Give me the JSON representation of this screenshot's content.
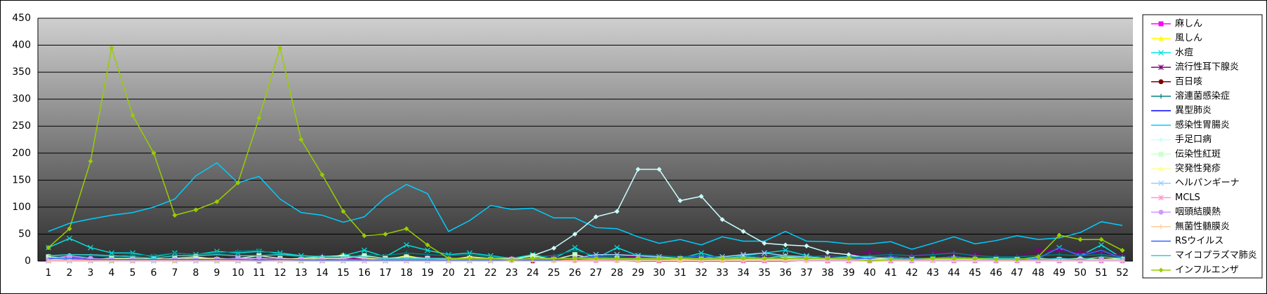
{
  "chart_data": {
    "type": "line",
    "categories": [
      "1",
      "2",
      "3",
      "4",
      "5",
      "6",
      "7",
      "8",
      "9",
      "10",
      "11",
      "12",
      "13",
      "14",
      "15",
      "16",
      "17",
      "18",
      "19",
      "20",
      "21",
      "22",
      "23",
      "24",
      "25",
      "26",
      "27",
      "28",
      "29",
      "30",
      "31",
      "32",
      "33",
      "34",
      "35",
      "36",
      "37",
      "38",
      "39",
      "40",
      "41",
      "42",
      "43",
      "44",
      "45",
      "46",
      "47",
      "48",
      "49",
      "50",
      "51",
      "52"
    ],
    "ylim": [
      0,
      450
    ],
    "yticks": [
      0,
      50,
      100,
      150,
      200,
      250,
      300,
      350,
      400,
      450
    ],
    "grid": true,
    "legend": "right",
    "series": [
      {
        "name": "麻しん",
        "color": "#ff00ff",
        "marker": "square",
        "values": [
          5,
          8,
          3,
          5,
          3,
          2,
          3,
          5,
          3,
          3,
          5,
          3,
          3,
          2,
          5,
          3,
          3,
          5,
          3,
          2,
          3,
          2,
          3,
          2,
          2,
          3,
          2,
          2,
          2,
          1,
          2,
          2,
          2,
          1,
          1,
          2,
          2,
          1,
          1,
          1,
          1,
          1,
          2,
          1,
          1,
          1,
          1,
          1,
          1,
          1,
          1,
          1
        ]
      },
      {
        "name": "風しん",
        "color": "#ffff00",
        "marker": "triangle",
        "values": [
          2,
          3,
          2,
          1,
          1,
          2,
          1,
          2,
          1,
          2,
          1,
          2,
          1,
          3,
          12,
          5,
          2,
          10,
          3,
          2,
          3,
          5,
          3,
          8,
          2,
          2,
          3,
          2,
          2,
          2,
          2,
          3,
          2,
          2,
          2,
          8,
          2,
          2,
          2,
          2,
          2,
          2,
          2,
          2,
          2,
          2,
          2,
          2,
          2,
          2,
          2,
          2
        ]
      },
      {
        "name": "水痘",
        "color": "#00e0e0",
        "marker": "x",
        "values": [
          25,
          42,
          25,
          15,
          15,
          8,
          15,
          12,
          18,
          15,
          18,
          15,
          10,
          8,
          10,
          20,
          8,
          30,
          20,
          12,
          15,
          10,
          5,
          12,
          5,
          25,
          5,
          25,
          10,
          5,
          5,
          15,
          5,
          10,
          15,
          20,
          10,
          5,
          5,
          5,
          8,
          5,
          5,
          5,
          5,
          5,
          3,
          5,
          25,
          10,
          30,
          5
        ]
      },
      {
        "name": "流行性耳下腺炎",
        "color": "#800080",
        "marker": "star",
        "values": [
          5,
          3,
          5,
          3,
          3,
          3,
          5,
          5,
          3,
          3,
          3,
          5,
          5,
          8,
          5,
          5,
          3,
          5,
          8,
          5,
          5,
          5,
          5,
          5,
          8,
          5,
          8,
          10,
          8,
          5,
          5,
          5,
          5,
          8,
          8,
          5,
          5,
          8,
          10,
          18,
          12,
          10,
          15,
          15,
          12,
          8,
          8,
          20,
          20,
          15,
          15,
          10
        ]
      },
      {
        "name": "百日咳",
        "color": "#800000",
        "marker": "circle",
        "values": [
          2,
          3,
          2,
          2,
          2,
          2,
          2,
          2,
          2,
          2,
          0,
          2,
          2,
          2,
          2,
          2,
          2,
          2,
          2,
          2,
          2,
          2,
          2,
          0,
          2,
          2,
          2,
          2,
          2,
          2,
          2,
          2,
          2,
          2,
          2,
          2,
          2,
          2,
          2,
          2,
          2,
          2,
          2,
          2,
          2,
          2,
          2,
          2,
          2,
          2,
          2,
          2
        ]
      },
      {
        "name": "溶連菌感染症",
        "color": "#008080",
        "marker": "plus",
        "values": [
          10,
          8,
          10,
          8,
          12,
          10,
          15,
          12,
          15,
          18,
          20,
          12,
          8,
          10,
          8,
          12,
          10,
          15,
          12,
          10,
          12,
          8,
          5,
          8,
          10,
          20,
          10,
          8,
          12,
          10,
          8,
          10,
          8,
          8,
          10,
          10,
          8,
          10,
          8,
          10,
          12,
          10,
          12,
          15,
          10,
          8,
          8,
          10,
          12,
          10,
          12,
          8
        ]
      },
      {
        "name": "異型肺炎",
        "color": "#0000ff",
        "marker": "none",
        "values": [
          3,
          3,
          3,
          3,
          2,
          2,
          3,
          2,
          3,
          2,
          3,
          3,
          2,
          2,
          3,
          2,
          3,
          2,
          2,
          2,
          2,
          2,
          2,
          2,
          2,
          3,
          2,
          2,
          3,
          2,
          2,
          2,
          2,
          2,
          2,
          2,
          2,
          2,
          2,
          2,
          2,
          2,
          2,
          2,
          2,
          2,
          2,
          2,
          2,
          2,
          2,
          2
        ]
      },
      {
        "name": "感染性胃腸炎",
        "color": "#00ccff",
        "marker": "none",
        "values": [
          55,
          70,
          78,
          85,
          90,
          100,
          115,
          158,
          182,
          145,
          157,
          115,
          90,
          85,
          72,
          82,
          118,
          142,
          125,
          55,
          75,
          103,
          96,
          98,
          80,
          80,
          62,
          60,
          45,
          33,
          40,
          30,
          45,
          37,
          37,
          55,
          37,
          36,
          32,
          32,
          36,
          22,
          33,
          45,
          32,
          38,
          47,
          40,
          43,
          53,
          73,
          66
        ]
      },
      {
        "name": "手足口病",
        "color": "#ccffff",
        "marker": "diamond",
        "values": [
          2,
          2,
          2,
          2,
          2,
          2,
          2,
          2,
          2,
          2,
          2,
          2,
          2,
          2,
          2,
          2,
          2,
          2,
          2,
          2,
          2,
          2,
          3,
          10,
          24,
          50,
          82,
          92,
          170,
          170,
          112,
          120,
          77,
          55,
          33,
          30,
          28,
          16,
          12,
          5,
          5,
          2,
          2,
          2,
          2,
          2,
          2,
          2,
          2,
          2,
          2,
          2
        ]
      },
      {
        "name": "伝染性紅斑",
        "color": "#ccffcc",
        "marker": "square",
        "values": [
          8,
          5,
          3,
          5,
          5,
          3,
          5,
          8,
          3,
          5,
          10,
          5,
          3,
          5,
          5,
          10,
          5,
          8,
          5,
          3,
          5,
          3,
          3,
          10,
          3,
          12,
          3,
          5,
          3,
          3,
          3,
          3,
          3,
          3,
          3,
          3,
          3,
          3,
          3,
          3,
          3,
          3,
          3,
          3,
          3,
          3,
          3,
          3,
          3,
          3,
          3,
          3
        ]
      },
      {
        "name": "突発性発疹",
        "color": "#ffff99",
        "marker": "triangle",
        "values": [
          3,
          5,
          3,
          5,
          3,
          5,
          3,
          5,
          5,
          3,
          5,
          3,
          5,
          8,
          10,
          5,
          3,
          5,
          3,
          3,
          8,
          5,
          5,
          3,
          3,
          5,
          5,
          3,
          5,
          5,
          3,
          3,
          5,
          8,
          5,
          10,
          3,
          5,
          3,
          5,
          5,
          3,
          5,
          8,
          5,
          3,
          3,
          5,
          3,
          5,
          3,
          5
        ]
      },
      {
        "name": "ヘルパンギーナ",
        "color": "#99ccff",
        "marker": "x",
        "values": [
          0,
          0,
          0,
          0,
          0,
          0,
          0,
          0,
          0,
          0,
          0,
          0,
          0,
          0,
          0,
          0,
          0,
          0,
          0,
          0,
          0,
          0,
          2,
          2,
          3,
          5,
          12,
          12,
          10,
          8,
          5,
          5,
          8,
          12,
          15,
          10,
          8,
          5,
          3,
          2,
          2,
          1,
          1,
          1,
          1,
          1,
          1,
          1,
          1,
          1,
          1,
          1
        ]
      },
      {
        "name": "MCLS",
        "color": "#ff99cc",
        "marker": "star",
        "values": [
          2,
          2,
          2,
          2,
          2,
          2,
          2,
          2,
          2,
          2,
          2,
          2,
          2,
          2,
          2,
          2,
          2,
          2,
          2,
          2,
          2,
          2,
          2,
          2,
          2,
          2,
          2,
          2,
          2,
          2,
          2,
          2,
          2,
          2,
          2,
          2,
          2,
          2,
          2,
          2,
          2,
          2,
          2,
          2,
          2,
          2,
          2,
          2,
          2,
          2,
          2,
          2
        ]
      },
      {
        "name": "咽頭結膜熱",
        "color": "#cc99ff",
        "marker": "circle",
        "values": [
          3,
          10,
          5,
          3,
          2,
          3,
          3,
          2,
          3,
          5,
          5,
          3,
          3,
          2,
          3,
          2,
          3,
          3,
          3,
          2,
          3,
          3,
          3,
          3,
          3,
          5,
          3,
          3,
          5,
          3,
          5,
          3,
          3,
          2,
          2,
          2,
          2,
          2,
          2,
          2,
          2,
          2,
          2,
          2,
          2,
          2,
          2,
          2,
          2,
          2,
          2,
          2
        ]
      },
      {
        "name": "無菌性髄膜炎",
        "color": "#ffcc99",
        "marker": "plus",
        "values": [
          0,
          0,
          0,
          0,
          0,
          0,
          0,
          0,
          0,
          0,
          0,
          0,
          0,
          0,
          0,
          0,
          0,
          0,
          0,
          0,
          0,
          0,
          0,
          0,
          0,
          0,
          0,
          0,
          1,
          1,
          1,
          1,
          1,
          1,
          1,
          1,
          0,
          0,
          0,
          0,
          0,
          0,
          0,
          0,
          0,
          0,
          0,
          0,
          0,
          0,
          0,
          0
        ]
      },
      {
        "name": "RSウイルス",
        "color": "#3366ff",
        "marker": "none",
        "values": [
          5,
          5,
          3,
          3,
          3,
          3,
          3,
          3,
          3,
          3,
          2,
          3,
          2,
          2,
          2,
          2,
          2,
          2,
          2,
          2,
          2,
          2,
          2,
          2,
          2,
          5,
          8,
          5,
          5,
          3,
          5,
          10,
          5,
          5,
          5,
          5,
          5,
          5,
          5,
          5,
          8,
          5,
          5,
          8,
          5,
          5,
          3,
          5,
          25,
          10,
          20,
          5
        ]
      },
      {
        "name": "マイコプラズマ肺炎",
        "color": "#33cccc",
        "marker": "none",
        "values": [
          10,
          12,
          12,
          10,
          8,
          5,
          10,
          10,
          12,
          10,
          10,
          12,
          10,
          8,
          8,
          8,
          5,
          5,
          5,
          5,
          5,
          5,
          3,
          5,
          5,
          5,
          5,
          3,
          3,
          3,
          5,
          3,
          5,
          8,
          5,
          10,
          5,
          5,
          8,
          8,
          5,
          3,
          5,
          5,
          5,
          5,
          5,
          3,
          5,
          3,
          8,
          5
        ]
      },
      {
        "name": "インフルエンザ",
        "color": "#99cc00",
        "marker": "diamond",
        "values": [
          25,
          60,
          185,
          395,
          270,
          200,
          85,
          95,
          110,
          145,
          265,
          395,
          225,
          160,
          92,
          47,
          50,
          60,
          30,
          5,
          5,
          5,
          2,
          5,
          5,
          5,
          5,
          5,
          5,
          5,
          5,
          5,
          5,
          5,
          5,
          5,
          5,
          5,
          5,
          0,
          3,
          3,
          5,
          5,
          5,
          3,
          3,
          8,
          48,
          40,
          40,
          20
        ]
      }
    ]
  }
}
